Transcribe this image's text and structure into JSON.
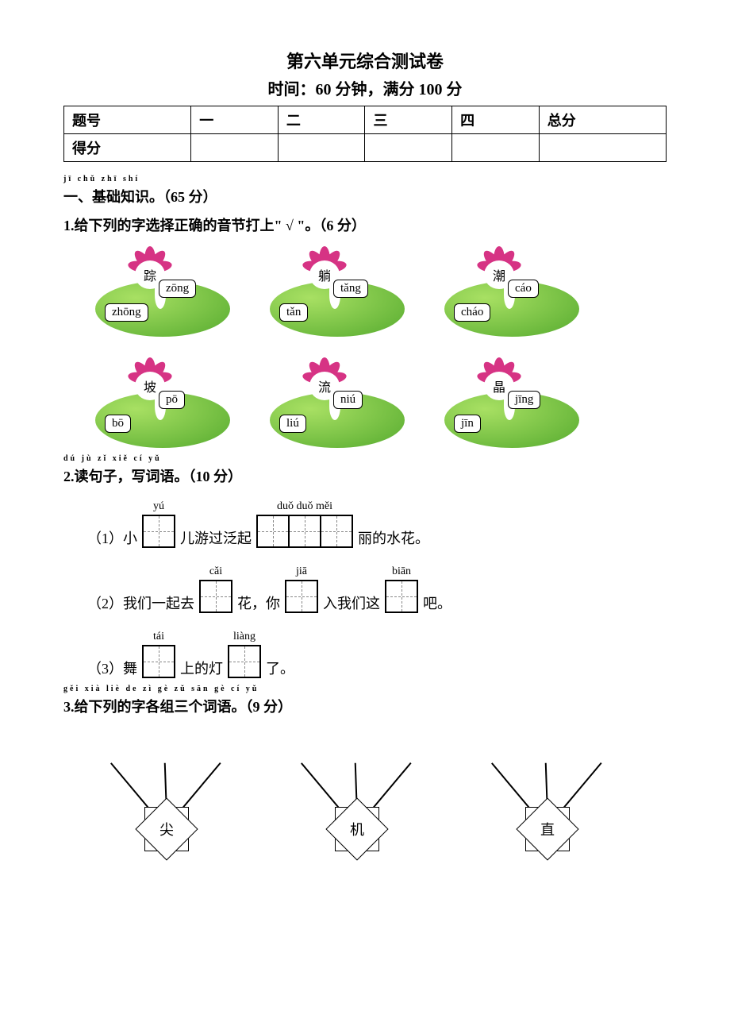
{
  "title": "第六单元综合测试卷",
  "subtitle": "时间：60 分钟，满分 100 分",
  "score_table": {
    "headers": [
      "题号",
      "一",
      "二",
      "三",
      "四",
      "总分"
    ],
    "row_label": "得分"
  },
  "s1": {
    "ruby": "jī chǔ zhī shí",
    "heading": "一、基础知识。（65 分）",
    "q1": {
      "text": "1.给下列的字选择正确的音节打上\" √ \"。（6 分）",
      "items": [
        {
          "char": "踪",
          "a": "zōng",
          "b": "zhōng"
        },
        {
          "char": "躺",
          "a": "tǎng",
          "b": "tǎn"
        },
        {
          "char": "潮",
          "a": "cáo",
          "b": "cháo"
        },
        {
          "char": "坡",
          "a": "pō",
          "b": "bō"
        },
        {
          "char": "流",
          "a": "niú",
          "b": "liú"
        },
        {
          "char": "晶",
          "a": "jīng",
          "b": "jīn"
        }
      ]
    },
    "q2": {
      "ruby": "dú jù zǐ   xiě cí yǔ",
      "text": "2.读句子，写词语。（10 分）",
      "lines": [
        {
          "pre": "（1）小",
          "boxes": [
            {
              "py": "yú"
            }
          ],
          "mid1": "儿游过泛起",
          "boxes2": [
            {
              "py": "duǒ"
            },
            {
              "py": "duǒ"
            },
            {
              "py": "měi"
            }
          ],
          "post": "丽的水花。"
        },
        {
          "pre": "（2）我们一起去",
          "boxes": [
            {
              "py": "cǎi"
            }
          ],
          "mid1": "花，你",
          "boxes2": [
            {
              "py": "jiā"
            }
          ],
          "mid2": "入我们这",
          "boxes3": [
            {
              "py": "biān"
            }
          ],
          "post": "吧。"
        },
        {
          "pre": "（3）舞",
          "boxes": [
            {
              "py": "tái"
            }
          ],
          "mid1": "上的灯",
          "boxes2": [
            {
              "py": "liàng"
            }
          ],
          "post": "了。"
        }
      ]
    },
    "q3": {
      "ruby": "gěi xià liè de zì gè zǔ sān gè cí yǔ",
      "text": "3.给下列的字各组三个词语。（9 分）",
      "chars": [
        "尖",
        "机",
        "直"
      ]
    }
  },
  "colors": {
    "petal": "#d63384",
    "pad_light": "#a8e063",
    "pad_dark": "#56ab2f"
  }
}
